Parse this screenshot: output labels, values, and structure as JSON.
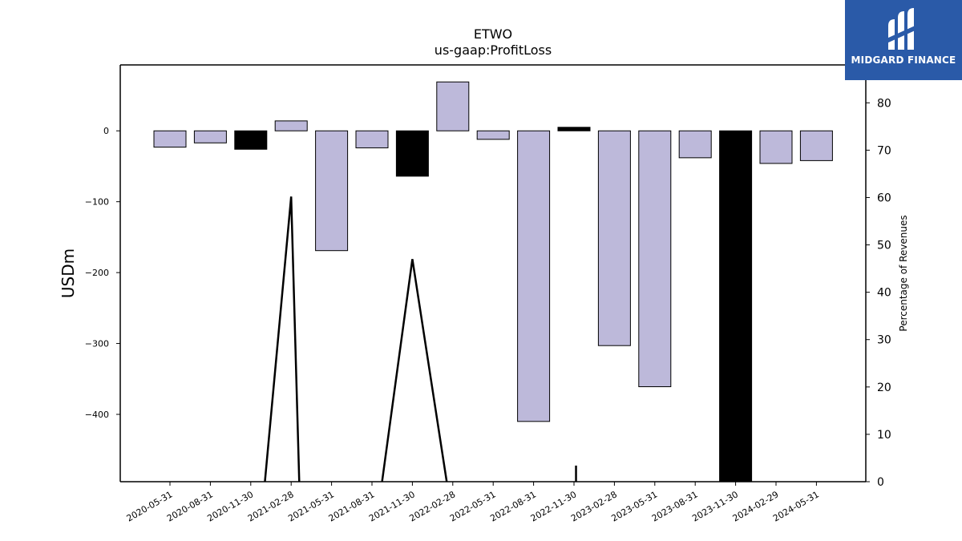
{
  "chart_data": {
    "type": "bar",
    "title": "ETWO",
    "subtitle": "us-gaap:ProfitLoss",
    "ylabel": "USDm",
    "y2label": "Percentage of Revenues",
    "ylim": [
      -495,
      93
    ],
    "y2lim": [
      0,
      88
    ],
    "yticks": [
      0,
      -100,
      -200,
      -300,
      -400
    ],
    "y2ticks": [
      0,
      10,
      20,
      30,
      40,
      50,
      60,
      70,
      80
    ],
    "categories": [
      "2020-05-31",
      "2020-08-31",
      "2020-11-30",
      "2021-02-28",
      "2021-05-31",
      "2021-08-31",
      "2021-11-30",
      "2022-02-28",
      "2022-05-31",
      "2022-08-31",
      "2022-11-30",
      "2023-02-28",
      "2023-05-31",
      "2023-08-31",
      "2023-11-30",
      "2024-02-29",
      "2024-05-31"
    ],
    "values": [
      -23,
      -17,
      -26,
      14,
      -169,
      -24,
      -64,
      69,
      -12,
      -410,
      5,
      -303,
      -361,
      -38,
      -495,
      -46,
      -42
    ],
    "bar_colors": [
      "#bdb9da",
      "#bdb9da",
      "#000000",
      "#bdb9da",
      "#bdb9da",
      "#bdb9da",
      "#000000",
      "#bdb9da",
      "#bdb9da",
      "#bdb9da",
      "#000000",
      "#bdb9da",
      "#bdb9da",
      "#bdb9da",
      "#000000",
      "#bdb9da",
      "#bdb9da"
    ],
    "line_series": {
      "x_index": [
        2.35,
        3,
        3.2,
        5.25,
        6,
        6.85,
        10.05,
        10.05
      ],
      "values": [
        0,
        60.2,
        0,
        0,
        47,
        0,
        0,
        3.4
      ],
      "segments": [
        [
          0,
          1,
          2
        ],
        [
          3,
          4,
          5
        ],
        [
          6,
          7
        ]
      ]
    },
    "colors": {
      "bar": "#bdb9da",
      "bar_negative_emphasis": "#000000",
      "line": "#000000"
    }
  },
  "logo": {
    "text": "MIDGARD FINANCE",
    "background": "#2a5aa8"
  }
}
